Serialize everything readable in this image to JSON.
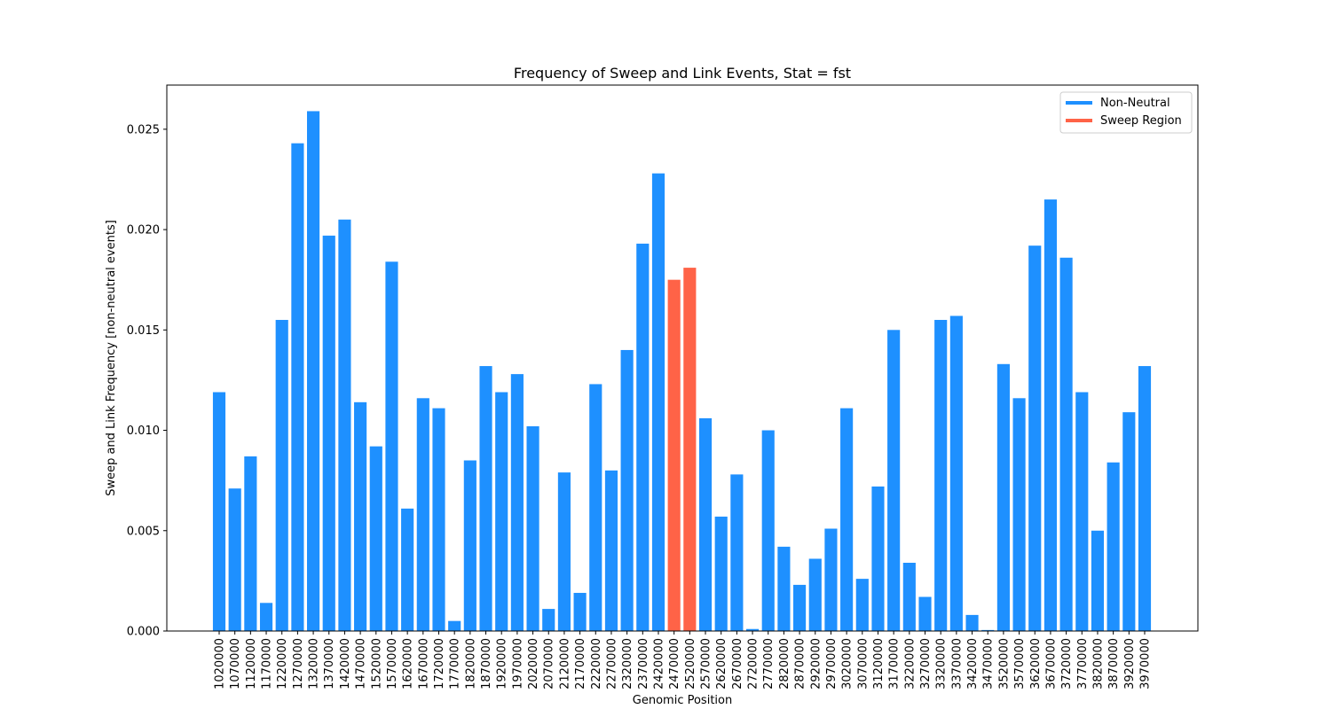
{
  "chart_data": {
    "type": "bar",
    "title": "Frequency of Sweep and Link Events, Stat = fst",
    "xlabel": "Genomic Position",
    "ylabel": "Sweep and Link Frequency [non-neutral events]",
    "ylim": [
      0,
      0.0272
    ],
    "yticks": [
      "0.000",
      "0.005",
      "0.010",
      "0.015",
      "0.020",
      "0.025"
    ],
    "legend_position": "top-right",
    "grid": false,
    "categories": [
      "1020000",
      "1070000",
      "1120000",
      "1170000",
      "1220000",
      "1270000",
      "1320000",
      "1370000",
      "1420000",
      "1470000",
      "1520000",
      "1570000",
      "1620000",
      "1670000",
      "1720000",
      "1770000",
      "1820000",
      "1870000",
      "1920000",
      "1970000",
      "2020000",
      "2070000",
      "2120000",
      "2170000",
      "2220000",
      "2270000",
      "2320000",
      "2370000",
      "2420000",
      "2470000",
      "2520000",
      "2570000",
      "2620000",
      "2670000",
      "2720000",
      "2770000",
      "2820000",
      "2870000",
      "2920000",
      "2970000",
      "3020000",
      "3070000",
      "3120000",
      "3170000",
      "3220000",
      "3270000",
      "3320000",
      "3370000",
      "3420000",
      "3470000",
      "3520000",
      "3570000",
      "3620000",
      "3670000",
      "3720000",
      "3770000",
      "3820000",
      "3870000",
      "3920000",
      "3970000"
    ],
    "values": [
      0.0119,
      0.0071,
      0.0087,
      0.0014,
      0.0155,
      0.0243,
      0.0259,
      0.0197,
      0.0205,
      0.0114,
      0.0092,
      0.0184,
      0.0061,
      0.0116,
      0.0111,
      0.0005,
      0.0085,
      0.0132,
      0.0119,
      0.0128,
      0.0102,
      0.0011,
      0.0079,
      0.0019,
      0.0123,
      0.008,
      0.014,
      0.0193,
      0.0228,
      0.0175,
      0.0181,
      0.0106,
      0.0057,
      0.0078,
      0.0001,
      0.01,
      0.0042,
      0.0023,
      0.0036,
      0.0051,
      0.0111,
      0.0026,
      0.0072,
      0.015,
      0.0034,
      0.0017,
      0.0155,
      0.0157,
      0.0008,
      5e-05,
      0.0133,
      0.0116,
      0.0192,
      0.0215,
      0.0186,
      0.0119,
      0.005,
      0.0084,
      0.0109,
      0.0132
    ],
    "series": [
      {
        "name": "Non-Neutral",
        "color": "#1e90ff"
      },
      {
        "name": "Sweep Region",
        "color": "#ff6347"
      }
    ],
    "highlight_categories": [
      "2470000",
      "2520000"
    ]
  }
}
